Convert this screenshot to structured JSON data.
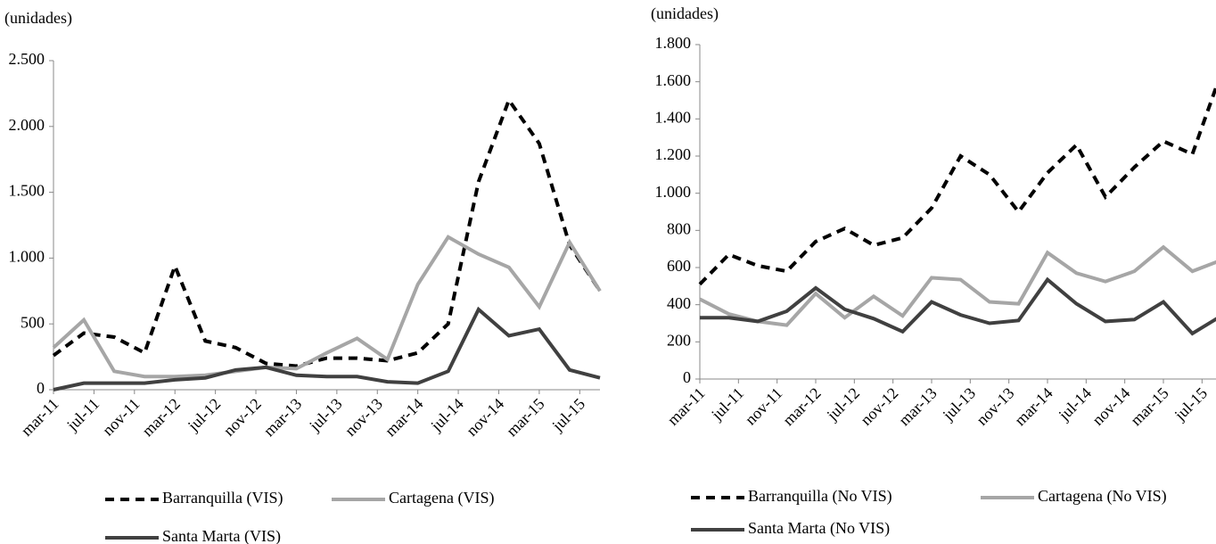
{
  "chart_data": [
    {
      "type": "line",
      "ylabel": "(unidades)",
      "x": [
        0,
        3,
        6,
        9,
        12,
        15,
        18,
        21,
        24,
        27,
        30,
        33,
        36,
        39,
        42,
        45,
        48,
        51,
        54
      ],
      "xlim": [
        0,
        54
      ],
      "xticks": [
        {
          "value": 0,
          "label": "mar-11"
        },
        {
          "value": 4,
          "label": "jul-11"
        },
        {
          "value": 8,
          "label": "nov-11"
        },
        {
          "value": 12,
          "label": "mar-12"
        },
        {
          "value": 16,
          "label": "jul-12"
        },
        {
          "value": 20,
          "label": "nov-12"
        },
        {
          "value": 24,
          "label": "mar-13"
        },
        {
          "value": 28,
          "label": "jul-13"
        },
        {
          "value": 32,
          "label": "nov-13"
        },
        {
          "value": 36,
          "label": "mar-14"
        },
        {
          "value": 40,
          "label": "jul-14"
        },
        {
          "value": 44,
          "label": "nov-14"
        },
        {
          "value": 48,
          "label": "mar-15"
        },
        {
          "value": 52,
          "label": "jul-15"
        }
      ],
      "ylim": [
        0,
        2500
      ],
      "yticks": [
        0,
        500,
        {
          "value": 1000,
          "label": "1.000"
        },
        {
          "value": 1500,
          "label": "1.500"
        },
        {
          "value": 2000,
          "label": "2.000"
        },
        {
          "value": 2500,
          "label": "2.500"
        }
      ],
      "series": [
        {
          "name": "Barranquilla (VIS)",
          "color": "#000000",
          "style": "dashed",
          "values": [
            260,
            430,
            400,
            280,
            940,
            370,
            320,
            200,
            180,
            240,
            240,
            220,
            280,
            500,
            1580,
            2200,
            1870,
            1100,
            750
          ]
        },
        {
          "name": "Cartagena (VIS)",
          "color": "#a6a6a6",
          "style": "solid",
          "values": [
            320,
            530,
            140,
            100,
            100,
            110,
            140,
            170,
            160,
            280,
            390,
            230,
            800,
            1160,
            1030,
            930,
            630,
            1120,
            750
          ]
        },
        {
          "name": "Santa Marta (VIS)",
          "color": "#404040",
          "style": "solid",
          "values": [
            0,
            50,
            50,
            50,
            75,
            90,
            150,
            170,
            110,
            100,
            100,
            60,
            50,
            140,
            610,
            410,
            460,
            150,
            90
          ]
        }
      ]
    },
    {
      "type": "line",
      "ylabel": "(unidades)",
      "x": [
        0,
        3,
        6,
        9,
        12,
        15,
        18,
        21,
        24,
        27,
        30,
        33,
        36,
        39,
        42,
        45,
        48,
        51,
        54
      ],
      "xlim": [
        0,
        54
      ],
      "xticks": [
        {
          "value": 0,
          "label": "mar-11"
        },
        {
          "value": 4,
          "label": "jul-11"
        },
        {
          "value": 8,
          "label": "nov-11"
        },
        {
          "value": 12,
          "label": "mar-12"
        },
        {
          "value": 16,
          "label": "jul-12"
        },
        {
          "value": 20,
          "label": "nov-12"
        },
        {
          "value": 24,
          "label": "mar-13"
        },
        {
          "value": 28,
          "label": "jul-13"
        },
        {
          "value": 32,
          "label": "nov-13"
        },
        {
          "value": 36,
          "label": "mar-14"
        },
        {
          "value": 40,
          "label": "jul-14"
        },
        {
          "value": 44,
          "label": "nov-14"
        },
        {
          "value": 48,
          "label": "mar-15"
        },
        {
          "value": 52,
          "label": "jul-15"
        }
      ],
      "ylim": [
        0,
        1800
      ],
      "yticks": [
        0,
        200,
        400,
        600,
        800,
        {
          "value": 1000,
          "label": "1.000"
        },
        {
          "value": 1200,
          "label": "1.200"
        },
        {
          "value": 1400,
          "label": "1.400"
        },
        {
          "value": 1600,
          "label": "1.600"
        },
        {
          "value": 1800,
          "label": "1.800"
        }
      ],
      "series": [
        {
          "name": "Barranquilla (No VIS)",
          "color": "#000000",
          "style": "dashed",
          "values": [
            510,
            670,
            610,
            580,
            740,
            810,
            720,
            760,
            920,
            1200,
            1100,
            900,
            1110,
            1260,
            980,
            1140,
            1280,
            1210,
            1650
          ]
        },
        {
          "name": "Cartagena (No VIS)",
          "color": "#a6a6a6",
          "style": "solid",
          "values": [
            430,
            350,
            310,
            290,
            460,
            330,
            445,
            340,
            545,
            535,
            415,
            405,
            680,
            570,
            525,
            580,
            710,
            580,
            640
          ]
        },
        {
          "name": "Santa Marta (No VIS)",
          "color": "#404040",
          "style": "solid",
          "values": [
            330,
            330,
            310,
            365,
            490,
            375,
            325,
            255,
            415,
            345,
            300,
            315,
            535,
            405,
            310,
            320,
            415,
            245,
            340
          ]
        }
      ]
    }
  ]
}
